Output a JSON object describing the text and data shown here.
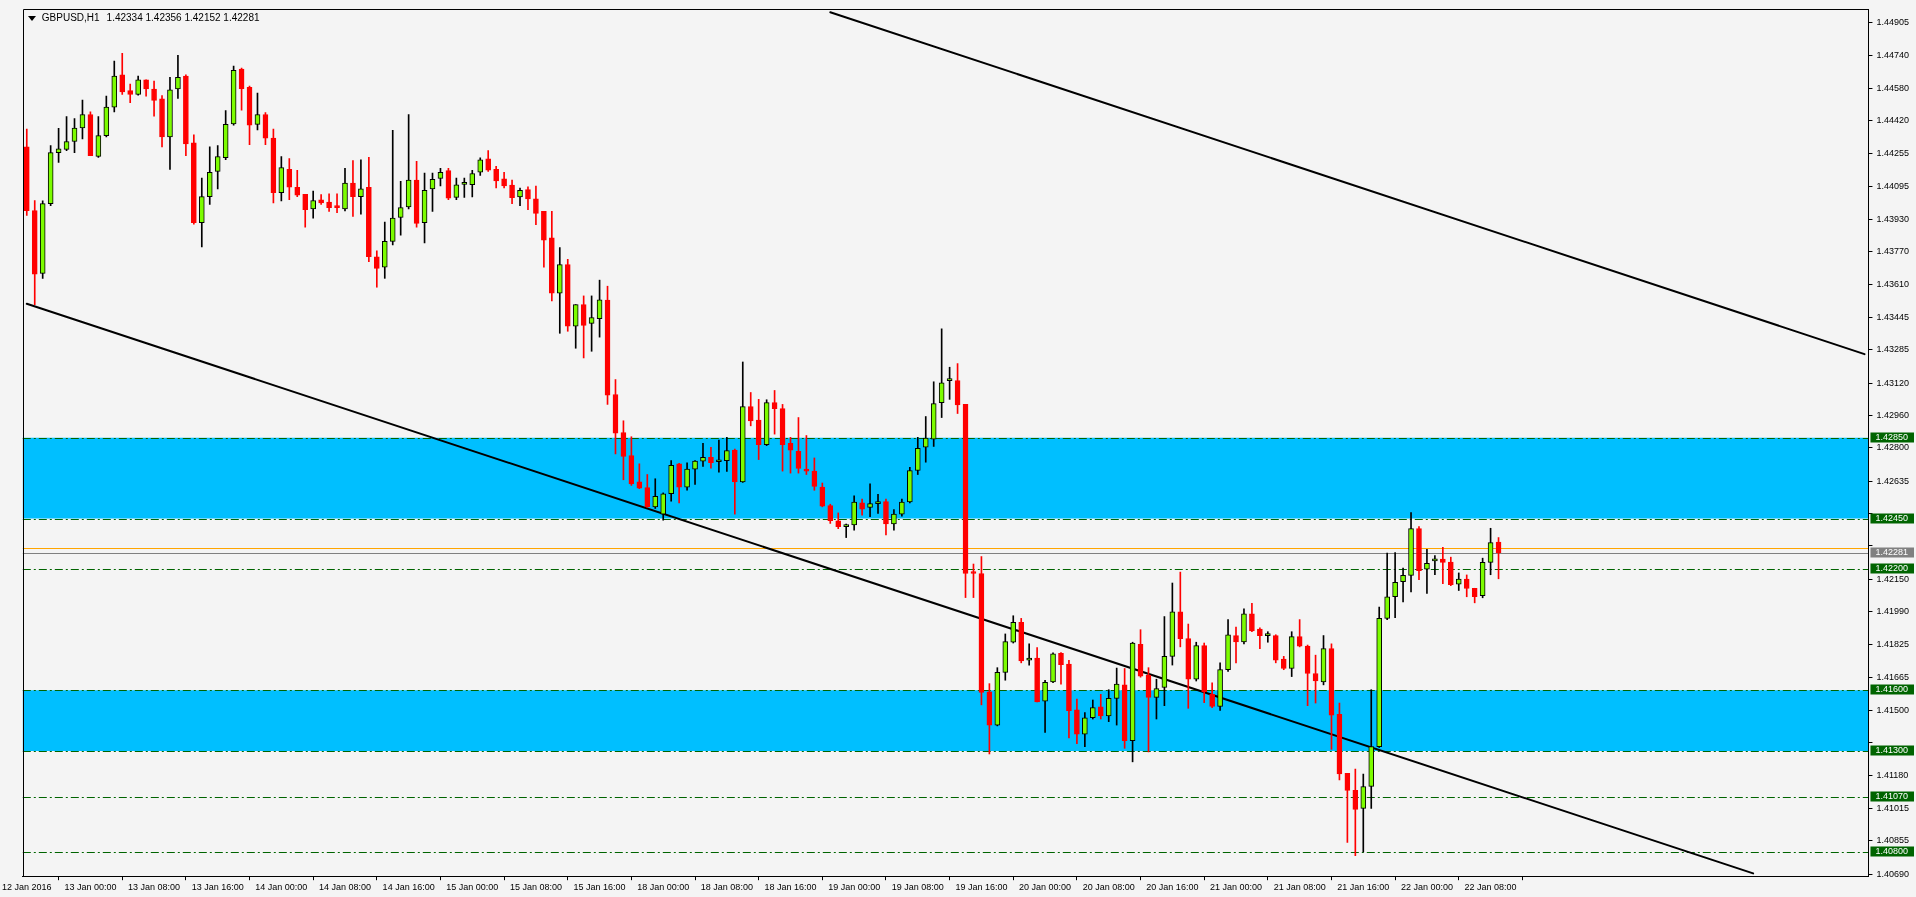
{
  "chart_data": {
    "type": "candlestick",
    "title": "GBPUSD,H1",
    "subtitle": "1.42334 1.42356 1.42152 1.42281",
    "categories": [
      "12 Jan 2016",
      null,
      null,
      null,
      null,
      null,
      null,
      null,
      "13 Jan 00:00",
      null,
      null,
      null,
      null,
      null,
      null,
      null,
      "13 Jan 08:00",
      null,
      null,
      null,
      null,
      null,
      null,
      null,
      "13 Jan 16:00",
      null,
      null,
      null,
      null,
      null,
      null,
      null,
      "14 Jan 00:00",
      null,
      null,
      null,
      null,
      null,
      null,
      null,
      "14 Jan 08:00",
      null,
      null,
      null,
      null,
      null,
      null,
      null,
      "14 Jan 16:00",
      null,
      null,
      null,
      null,
      null,
      null,
      null,
      "15 Jan 00:00",
      null,
      null,
      null,
      null,
      null,
      null,
      null,
      "15 Jan 08:00",
      null,
      null,
      null,
      null,
      null,
      null,
      null,
      "15 Jan 16:00",
      null,
      null,
      null,
      null,
      null,
      null,
      null,
      "18 Jan 00:00",
      null,
      null,
      null,
      null,
      null,
      null,
      null,
      "18 Jan 08:00",
      null,
      null,
      null,
      null,
      null,
      null,
      null,
      "18 Jan 16:00",
      null,
      null,
      null,
      null,
      null,
      null,
      null,
      "19 Jan 00:00",
      null,
      null,
      null,
      null,
      null,
      null,
      null,
      "19 Jan 08:00",
      null,
      null,
      null,
      null,
      null,
      null,
      null,
      "19 Jan 16:00",
      null,
      null,
      null,
      null,
      null,
      null,
      null,
      "20 Jan 00:00",
      null,
      null,
      null,
      null,
      null,
      null,
      null,
      "20 Jan 08:00",
      null,
      null,
      null,
      null,
      null,
      null,
      null,
      "20 Jan 16:00",
      null,
      null,
      null,
      null,
      null,
      null,
      null,
      "21 Jan 00:00",
      null,
      null,
      null,
      null,
      null,
      null,
      null,
      "21 Jan 08:00",
      null,
      null,
      null,
      null,
      null,
      null,
      null,
      "21 Jan 16:00",
      null,
      null,
      null,
      null,
      null,
      null,
      null,
      "22 Jan 00:00",
      null,
      null,
      null,
      null,
      null,
      null,
      null,
      "22 Jan 08:00",
      null,
      null,
      null,
      null,
      null,
      null,
      null,
      null,
      null,
      null,
      null,
      null,
      null,
      null,
      null,
      null,
      null,
      null,
      null,
      null,
      null,
      null,
      null,
      null,
      null,
      null,
      null,
      null,
      null,
      null,
      null,
      null,
      null,
      null,
      null,
      null,
      null,
      null,
      null,
      null,
      null,
      null,
      null,
      null,
      null,
      null,
      null
    ],
    "ohlc": [
      [
        1.4429,
        1.44378,
        1.4395,
        1.43974
      ],
      [
        1.43974,
        1.44024,
        1.43509,
        1.43659
      ],
      [
        1.43663,
        1.44022,
        1.43639,
        1.44009
      ],
      [
        1.44009,
        1.44296,
        1.43999,
        1.44261
      ],
      [
        1.44261,
        1.44382,
        1.44213,
        1.4428
      ],
      [
        1.44277,
        1.4444,
        1.44271,
        1.44316
      ],
      [
        1.44316,
        1.4443,
        1.44261,
        1.44383
      ],
      [
        1.44383,
        1.44521,
        1.44329,
        1.4445
      ],
      [
        1.4445,
        1.44463,
        1.44246,
        1.44246
      ],
      [
        1.44242,
        1.4444,
        1.44238,
        1.44345
      ],
      [
        1.44345,
        1.44541,
        1.44339,
        1.44486
      ],
      [
        1.44486,
        1.44714,
        1.44463,
        1.4464
      ],
      [
        1.44646,
        1.44753,
        1.44549,
        1.44562
      ],
      [
        1.44568,
        1.44601,
        1.44508,
        1.44549
      ],
      [
        1.44549,
        1.4464,
        1.44545,
        1.44621
      ],
      [
        1.44621,
        1.44621,
        1.44541,
        1.44576
      ],
      [
        1.44576,
        1.44615,
        1.44442,
        1.4452
      ],
      [
        1.44527,
        1.44543,
        1.4429,
        1.44339
      ],
      [
        1.44339,
        1.44634,
        1.44178,
        1.44572
      ],
      [
        1.44576,
        1.44743,
        1.44529,
        1.44634
      ],
      [
        1.4464,
        1.44646,
        1.44246,
        1.44304
      ],
      [
        1.4431,
        1.44349,
        1.43907,
        1.43915
      ],
      [
        1.43915,
        1.44135,
        1.43795,
        1.44043
      ],
      [
        1.44043,
        1.4429,
        1.44005,
        1.44164
      ],
      [
        1.44168,
        1.44296,
        1.44082,
        1.44242
      ],
      [
        1.44236,
        1.44469,
        1.44226,
        1.44401
      ],
      [
        1.44403,
        1.44689,
        1.44397,
        1.44669
      ],
      [
        1.44675,
        1.44679,
        1.44471,
        1.44578
      ],
      [
        1.44584,
        1.44591,
        1.443,
        1.44397
      ],
      [
        1.44401,
        1.44556,
        1.44374,
        1.4445
      ],
      [
        1.4445,
        1.44459,
        1.443,
        1.44333
      ],
      [
        1.44333,
        1.44378,
        1.44012,
        1.44063
      ],
      [
        1.44063,
        1.44242,
        1.44022,
        1.44187
      ],
      [
        1.44179,
        1.44232,
        1.44028,
        1.4409
      ],
      [
        1.4409,
        1.44174,
        1.44043,
        1.44051
      ],
      [
        1.44055,
        1.44055,
        1.43892,
        1.43979
      ],
      [
        1.43983,
        1.44071,
        1.43937,
        1.44024
      ],
      [
        1.44028,
        1.44053,
        1.44005,
        1.44012
      ],
      [
        1.44016,
        1.44057,
        1.4397,
        1.43989
      ],
      [
        1.43993,
        1.44057,
        1.43964,
        1.43989
      ],
      [
        1.43983,
        1.44183,
        1.43973,
        1.4411
      ],
      [
        1.4411,
        1.44222,
        1.43946,
        1.44043
      ],
      [
        1.44043,
        1.44226,
        1.43956,
        1.44082
      ],
      [
        1.4409,
        1.44238,
        1.43721,
        1.43746
      ],
      [
        1.43746,
        1.43775,
        1.43595,
        1.43688
      ],
      [
        1.43694,
        1.43917,
        1.43639,
        1.43822
      ],
      [
        1.43822,
        1.44372,
        1.43804,
        1.43937
      ],
      [
        1.4394,
        1.44119,
        1.43853,
        1.43989
      ],
      [
        1.43993,
        1.4445,
        1.43983,
        1.44125
      ],
      [
        1.44125,
        1.44218,
        1.43892,
        1.43911
      ],
      [
        1.43915,
        1.4416,
        1.43814,
        1.44075
      ],
      [
        1.44082,
        1.4416,
        1.4397,
        1.44129
      ],
      [
        1.44133,
        1.44183,
        1.44096,
        1.44164
      ],
      [
        1.44172,
        1.44183,
        1.44028,
        1.44036
      ],
      [
        1.4404,
        1.44135,
        1.44028,
        1.44102
      ],
      [
        1.44104,
        1.44135,
        1.4404,
        1.44104
      ],
      [
        1.44102,
        1.44174,
        1.44042,
        1.44158
      ],
      [
        1.44164,
        1.44236,
        1.44148,
        1.44226
      ],
      [
        1.4423,
        1.44271,
        1.44168,
        1.44174
      ],
      [
        1.44179,
        1.44193,
        1.44086,
        1.44121
      ],
      [
        1.44131,
        1.44164,
        1.44086,
        1.44096
      ],
      [
        1.441,
        1.44125,
        1.44009,
        1.44038
      ],
      [
        1.44042,
        1.44086,
        1.43999,
        1.44075
      ],
      [
        1.44078,
        1.44092,
        1.43979,
        1.44032
      ],
      [
        1.44032,
        1.44096,
        1.43905,
        1.4396
      ],
      [
        1.4397,
        1.4397,
        1.43694,
        1.43828
      ],
      [
        1.43839,
        1.4397,
        1.43527,
        1.43565
      ],
      [
        1.43565,
        1.43791,
        1.43367,
        1.43707
      ],
      [
        1.43707,
        1.43733,
        1.43377,
        1.43402
      ],
      [
        1.43402,
        1.43509,
        1.43293,
        1.43509
      ],
      [
        1.43509,
        1.43552,
        1.43245,
        1.43406
      ],
      [
        1.43416,
        1.43552,
        1.43278,
        1.43445
      ],
      [
        1.43439,
        1.4363,
        1.43348,
        1.43532
      ],
      [
        1.43531,
        1.436,
        1.43015,
        1.43061
      ],
      [
        1.43064,
        1.43138,
        1.4277,
        1.42873
      ],
      [
        1.42876,
        1.42934,
        1.42642,
        1.42757
      ],
      [
        1.42762,
        1.42855,
        1.42614,
        1.42622
      ],
      [
        1.42632,
        1.42721,
        1.42598,
        1.426
      ],
      [
        1.42603,
        1.42668,
        1.42505,
        1.42508
      ],
      [
        1.42508,
        1.42647,
        1.425,
        1.4256
      ],
      [
        1.42472,
        1.42577,
        1.42442,
        1.42573
      ],
      [
        1.42573,
        1.42737,
        1.42536,
        1.42714
      ],
      [
        1.42721,
        1.42724,
        1.42528,
        1.42606
      ],
      [
        1.42606,
        1.42726,
        1.4259,
        1.42695
      ],
      [
        1.42695,
        1.42737,
        1.42619,
        1.42734
      ],
      [
        1.42734,
        1.42822,
        1.42708,
        1.42753
      ],
      [
        1.42753,
        1.42803,
        1.42699,
        1.42727
      ],
      [
        1.42731,
        1.42839,
        1.4268,
        1.42731
      ],
      [
        1.42737,
        1.42852,
        1.42683,
        1.42786
      ],
      [
        1.42789,
        1.42794,
        1.42472,
        1.42632
      ],
      [
        1.42632,
        1.43225,
        1.42629,
        1.43004
      ],
      [
        1.43004,
        1.43074,
        1.42909,
        1.42933
      ],
      [
        1.42937,
        1.4304,
        1.42742,
        1.42816
      ],
      [
        1.42816,
        1.43038,
        1.42811,
        1.43024
      ],
      [
        1.43024,
        1.43084,
        1.42868,
        1.42994
      ],
      [
        1.42994,
        1.43015,
        1.42685,
        1.42816
      ],
      [
        1.42822,
        1.42852,
        1.42675,
        1.42789
      ],
      [
        1.42783,
        1.4295,
        1.42675,
        1.42698
      ],
      [
        1.42695,
        1.42861,
        1.42668,
        1.42685
      ],
      [
        1.42685,
        1.4275,
        1.4259,
        1.42609
      ],
      [
        1.42606,
        1.42626,
        1.42508,
        1.42511
      ],
      [
        1.42514,
        1.42521,
        1.42426,
        1.42439
      ],
      [
        1.42439,
        1.42478,
        1.424,
        1.4241
      ],
      [
        1.4241,
        1.42423,
        1.42356,
        1.42419
      ],
      [
        1.42419,
        1.42562,
        1.42393,
        1.42532
      ],
      [
        1.42528,
        1.42547,
        1.42467,
        1.42496
      ],
      [
        1.42505,
        1.42622,
        1.42459,
        1.42524
      ],
      [
        1.42524,
        1.4257,
        1.42475,
        1.42534
      ],
      [
        1.42534,
        1.42547,
        1.42369,
        1.42423
      ],
      [
        1.42423,
        1.42495,
        1.42393,
        1.42472
      ],
      [
        1.42472,
        1.42547,
        1.42462,
        1.42532
      ],
      [
        1.42532,
        1.42704,
        1.42528,
        1.42688
      ],
      [
        1.42688,
        1.42852,
        1.42668,
        1.42798
      ],
      [
        1.42803,
        1.42955,
        1.42729,
        1.42848
      ],
      [
        1.42843,
        1.43127,
        1.42807,
        1.43019
      ],
      [
        1.43024,
        1.43389,
        1.4295,
        1.43122
      ],
      [
        1.43133,
        1.43199,
        1.4304,
        1.43133
      ],
      [
        1.43133,
        1.43217,
        1.4297,
        1.43012
      ],
      [
        1.43015,
        1.43015,
        1.42059,
        1.42178
      ],
      [
        1.42185,
        1.42225,
        1.42059,
        1.42178
      ],
      [
        1.42178,
        1.42262,
        1.41528,
        1.4159
      ],
      [
        1.41593,
        1.41633,
        1.41285,
        1.41428
      ],
      [
        1.41428,
        1.41712,
        1.41424,
        1.41689
      ],
      [
        1.41689,
        1.41879,
        1.4165,
        1.41841
      ],
      [
        1.41838,
        1.41969,
        1.41834,
        1.41937
      ],
      [
        1.41937,
        1.41956,
        1.41736,
        1.41746
      ],
      [
        1.41749,
        1.4183,
        1.41725,
        1.41759
      ],
      [
        1.41759,
        1.41811,
        1.41543,
        1.41543
      ],
      [
        1.41546,
        1.4165,
        1.41392,
        1.4164
      ],
      [
        1.41642,
        1.41785,
        1.41638,
        1.41781
      ],
      [
        1.41783,
        1.41787,
        1.41631,
        1.41727
      ],
      [
        1.4173,
        1.41749,
        1.41364,
        1.41499
      ],
      [
        1.41503,
        1.41556,
        1.41336,
        1.41383
      ],
      [
        1.41383,
        1.4149,
        1.41321,
        1.41464
      ],
      [
        1.41464,
        1.41552,
        1.41458,
        1.41514
      ],
      [
        1.41518,
        1.4158,
        1.41458,
        1.41473
      ],
      [
        1.41473,
        1.41603,
        1.41445,
        1.4156
      ],
      [
        1.4156,
        1.4171,
        1.41428,
        1.41631
      ],
      [
        1.41627,
        1.41708,
        1.41313,
        1.41351
      ],
      [
        1.41351,
        1.41838,
        1.41246,
        1.41834
      ],
      [
        1.41828,
        1.419,
        1.41665,
        1.4167
      ],
      [
        1.41674,
        1.41712,
        1.41295,
        1.41565
      ],
      [
        1.41565,
        1.41655,
        1.41458,
        1.41608
      ],
      [
        1.41614,
        1.41965,
        1.41524,
        1.41768
      ],
      [
        1.41768,
        1.42131,
        1.41725,
        1.41988
      ],
      [
        1.41988,
        1.42185,
        1.41815,
        1.41856
      ],
      [
        1.41856,
        1.41928,
        1.41511,
        1.41655
      ],
      [
        1.41655,
        1.41838,
        1.41646,
        1.41821
      ],
      [
        1.41821,
        1.41834,
        1.41539,
        1.41593
      ],
      [
        1.4158,
        1.41637,
        1.41514,
        1.4152
      ],
      [
        1.4152,
        1.41736,
        1.41501,
        1.41702
      ],
      [
        1.41702,
        1.4195,
        1.41693,
        1.41875
      ],
      [
        1.41871,
        1.41913,
        1.41736,
        1.41839
      ],
      [
        1.41839,
        1.42003,
        1.4183,
        1.41979
      ],
      [
        1.41979,
        1.42031,
        1.4189,
        1.41894
      ],
      [
        1.41903,
        1.41909,
        1.41806,
        1.41871
      ],
      [
        1.41871,
        1.4189,
        1.41838,
        1.41871
      ],
      [
        1.41871,
        1.41875,
        1.41736,
        1.41749
      ],
      [
        1.41755,
        1.41768,
        1.41702,
        1.41708
      ],
      [
        1.41708,
        1.4189,
        1.41668,
        1.41866
      ],
      [
        1.41866,
        1.4195,
        1.41815,
        1.41819
      ],
      [
        1.41819,
        1.41824,
        1.41524,
        1.41683
      ],
      [
        1.41683,
        1.41774,
        1.41537,
        1.41646
      ],
      [
        1.41642,
        1.41871,
        1.41627,
        1.41806
      ],
      [
        1.41806,
        1.4183,
        1.41308,
        1.41477
      ],
      [
        1.41481,
        1.41537,
        1.41157,
        1.41186
      ],
      [
        1.41189,
        1.41189,
        1.40847,
        1.41105
      ],
      [
        1.41105,
        1.4121,
        1.40782,
        1.41011
      ],
      [
        1.41016,
        1.41186,
        1.408,
        1.41124
      ],
      [
        1.41124,
        1.41603,
        1.41016,
        1.41321
      ],
      [
        1.41321,
        1.42012,
        1.41317,
        1.41956
      ],
      [
        1.41956,
        1.42279,
        1.4195,
        1.42063
      ],
      [
        1.42063,
        1.42282,
        1.4196,
        1.42135
      ],
      [
        1.42138,
        1.42205,
        1.42038,
        1.42169
      ],
      [
        1.42169,
        1.4248,
        1.42087,
        1.424
      ],
      [
        1.424,
        1.4241,
        1.42148,
        1.42192
      ],
      [
        1.422,
        1.42298,
        1.42079,
        1.42228
      ],
      [
        1.42241,
        1.42267,
        1.42172,
        1.42241
      ],
      [
        1.42249,
        1.42308,
        1.42128,
        1.42233
      ],
      [
        1.42235,
        1.42259,
        1.42118,
        1.42123
      ],
      [
        1.42125,
        1.42181,
        1.42094,
        1.42151
      ],
      [
        1.42151,
        1.42171,
        1.42063,
        1.42104
      ],
      [
        1.42105,
        1.42105,
        1.42033,
        1.42064
      ],
      [
        1.42069,
        1.42254,
        1.42058,
        1.42233
      ],
      [
        1.42233,
        1.42402,
        1.42172,
        1.42331
      ],
      [
        1.42334,
        1.42356,
        1.42152,
        1.42281
      ],
      null,
      null,
      null,
      null,
      null,
      null,
      null,
      null,
      null,
      null,
      null,
      null,
      null,
      null,
      null,
      null,
      null,
      null,
      null,
      null,
      null,
      null,
      null,
      null,
      null,
      null,
      null,
      null,
      null,
      null,
      null,
      null,
      null,
      null,
      null,
      null,
      null,
      null,
      null,
      null,
      null,
      null,
      null,
      null,
      null,
      null
    ],
    "series": [
      {
        "type": "line",
        "color": "#000000",
        "values": [
          1.43513,
          null,
          null,
          null,
          null,
          null,
          null,
          null,
          null,
          null,
          null,
          null,
          null,
          null,
          null,
          null,
          null,
          null,
          null,
          null,
          null,
          null,
          null,
          null,
          null,
          null,
          null,
          null,
          null,
          null,
          null,
          null,
          null,
          null,
          null,
          null,
          null,
          null,
          null,
          null,
          null,
          null,
          null,
          null,
          null,
          null,
          null,
          null,
          null,
          null,
          null,
          null,
          null,
          null,
          null,
          null,
          null,
          null,
          null,
          null,
          null,
          null,
          null,
          null,
          null,
          null,
          null,
          null,
          null,
          null,
          null,
          null,
          null,
          null,
          null,
          null,
          null,
          null,
          null,
          null,
          null,
          null,
          null,
          null,
          null,
          null,
          null,
          null,
          null,
          null,
          null,
          null,
          null,
          null,
          null,
          null,
          null,
          null,
          null,
          null,
          null,
          null,
          null,
          null,
          null,
          null,
          null,
          null,
          null,
          null,
          null,
          null,
          null,
          null,
          null,
          null,
          null,
          null,
          null,
          null,
          null,
          null,
          null,
          null,
          null,
          null,
          null,
          null,
          null,
          null,
          null,
          null,
          null,
          null,
          null,
          null,
          null,
          null,
          null,
          null,
          null,
          null,
          null,
          null,
          null,
          null,
          null,
          null,
          null,
          null,
          null,
          null,
          null,
          null,
          null,
          null,
          null,
          null,
          null,
          null,
          null,
          null,
          null,
          null,
          null,
          null,
          null,
          null,
          null,
          null,
          null,
          null,
          null,
          null,
          null,
          null,
          null,
          null,
          null,
          null,
          null,
          null,
          null,
          null,
          null,
          null,
          null,
          null,
          null,
          null,
          null,
          null,
          null,
          null,
          null,
          null,
          null,
          null,
          null,
          null,
          null,
          null,
          null,
          null,
          null,
          null,
          null,
          null,
          null,
          null,
          null,
          null,
          null,
          null,
          null,
          null,
          null,
          1.40694,
          null,
          null,
          null,
          null,
          null,
          null,
          null,
          null,
          null,
          null,
          null,
          null,
          null,
          null
        ]
      },
      {
        "type": "line",
        "color": "#000000",
        "values": [
          null,
          null,
          null,
          null,
          null,
          null,
          null,
          null,
          null,
          null,
          null,
          null,
          null,
          null,
          null,
          null,
          null,
          null,
          null,
          null,
          null,
          null,
          null,
          null,
          null,
          null,
          null,
          null,
          null,
          null,
          null,
          null,
          null,
          null,
          null,
          null,
          null,
          null,
          null,
          null,
          null,
          null,
          null,
          null,
          null,
          null,
          null,
          null,
          null,
          null,
          null,
          null,
          null,
          null,
          null,
          null,
          null,
          null,
          null,
          null,
          null,
          null,
          null,
          null,
          null,
          null,
          null,
          null,
          null,
          null,
          null,
          null,
          null,
          null,
          null,
          null,
          null,
          null,
          null,
          null,
          null,
          null,
          null,
          null,
          null,
          null,
          null,
          null,
          null,
          null,
          null,
          null,
          null,
          null,
          null,
          null,
          null,
          null,
          null,
          null,
          null,
          1.44956,
          null,
          null,
          null,
          null,
          null,
          null,
          null,
          null,
          null,
          null,
          null,
          null,
          null,
          null,
          null,
          null,
          null,
          null,
          null,
          null,
          null,
          null,
          null,
          null,
          null,
          null,
          null,
          null,
          null,
          null,
          null,
          null,
          null,
          null,
          null,
          null,
          null,
          null,
          null,
          null,
          null,
          null,
          null,
          null,
          null,
          null,
          null,
          null,
          null,
          null,
          null,
          null,
          null,
          null,
          null,
          null,
          null,
          null,
          null,
          null,
          null,
          null,
          null,
          null,
          null,
          null,
          null,
          null,
          null,
          null,
          null,
          null,
          null,
          null,
          null,
          null,
          null,
          null,
          null,
          null,
          null,
          null,
          null,
          null,
          null,
          null,
          null,
          null,
          null,
          null,
          null,
          null,
          null,
          null,
          null,
          null,
          null,
          null,
          null,
          null,
          null,
          null,
          null,
          null,
          null,
          null,
          null,
          null,
          null,
          null,
          null,
          null,
          null,
          null,
          null,
          null,
          null,
          null,
          null,
          null,
          null,
          null,
          null,
          null,
          null,
          null,
          null,
          null,
          null,
          1.43264
        ]
      }
    ],
    "ylim": [
      1.4068,
      1.4497
    ],
    "yticks": [
      {
        "value": 1.4069,
        "label": "1.40690"
      },
      1.40855,
      1.41015,
      {
        "value": 1.4118,
        "label": "1.41180"
      },
      {
        "value": 1.4134,
        "label": null
      },
      {
        "value": 1.415,
        "label": "1.41500"
      },
      1.41665,
      1.41825,
      {
        "value": 1.4199,
        "label": "1.41990"
      },
      {
        "value": 1.4215,
        "label": "1.42150"
      },
      {
        "value": 1.42315,
        "label": null
      },
      {
        "value": 1.42475,
        "label": null
      },
      1.42635,
      {
        "value": 1.428,
        "label": "1.42800"
      },
      {
        "value": 1.4296,
        "label": "1.42960"
      },
      {
        "value": 1.4312,
        "label": "1.43120"
      },
      1.43285,
      1.43445,
      {
        "value": 1.4361,
        "label": "1.43610"
      },
      {
        "value": 1.4377,
        "label": "1.43770"
      },
      {
        "value": 1.4393,
        "label": "1.43930"
      },
      1.44095,
      1.44255,
      {
        "value": 1.4442,
        "label": "1.44420"
      },
      {
        "value": 1.4458,
        "label": "1.44580"
      },
      {
        "value": 1.4474,
        "label": "1.44740"
      },
      1.44905
    ],
    "bands": [
      {
        "axis": "y",
        "from": 1.4245,
        "to": 1.4285,
        "color": "#00bfff"
      },
      {
        "axis": "y",
        "from": 1.413,
        "to": 1.416,
        "color": "#00bfff"
      }
    ],
    "ref_lines": [
      {
        "axis": "y",
        "value": 1.4285,
        "label": "1.42850",
        "color": "#006400",
        "line_style": "dashed"
      },
      {
        "axis": "y",
        "value": 1.4245,
        "label": "1.42450",
        "color": "#006400",
        "line_style": "dashed"
      },
      {
        "axis": "y",
        "value": 1.42302,
        "label": null,
        "color": "#ffa500",
        "line_style": "solid"
      },
      {
        "axis": "y",
        "value": 1.42281,
        "label": "1.42281",
        "color": "#808080",
        "line_style": "solid"
      },
      {
        "axis": "y",
        "value": 1.422,
        "label": "1.42200",
        "color": "#006400",
        "line_style": "dashed"
      },
      {
        "axis": "y",
        "value": 1.416,
        "label": "1.41600",
        "color": "#006400",
        "line_style": "dashed"
      },
      {
        "axis": "y",
        "value": 1.413,
        "label": "1.41300",
        "color": "#006400",
        "line_style": "dashed"
      },
      {
        "axis": "y",
        "value": 1.4107,
        "label": "1.41070",
        "color": "#006400",
        "line_style": "dashed"
      },
      {
        "axis": "y",
        "value": 1.408,
        "label": "1.40800",
        "color": "#006400",
        "line_style": "dashed"
      }
    ]
  }
}
